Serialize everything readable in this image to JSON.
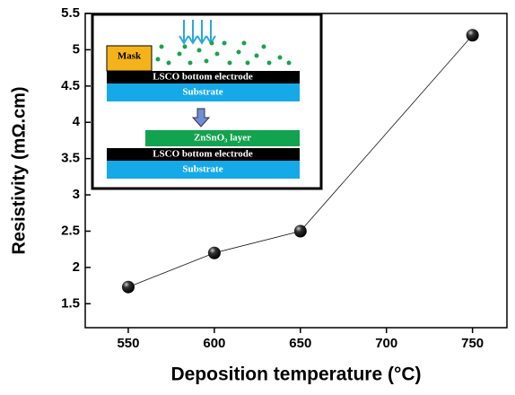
{
  "chart_data": {
    "type": "line",
    "xlabel": "Deposition temperature (°C)",
    "ylabel": "Resistivity (mΩ.cm)",
    "x": [
      550,
      600,
      650,
      750
    ],
    "series": [
      {
        "values": [
          1.73,
          2.2,
          2.5,
          5.2
        ],
        "color": "#111111"
      }
    ],
    "xlim": [
      525,
      770
    ],
    "xticks": [
      550,
      600,
      650,
      700,
      750
    ],
    "ylim": [
      1.17,
      5.5
    ],
    "yticks": [
      1.5,
      2.0,
      2.5,
      3.0,
      3.5,
      4.0,
      4.5,
      5.0,
      5.5
    ],
    "grid": false
  },
  "inset": {
    "mask": "Mask",
    "top_electrode": "LSCO bottom electrode",
    "top_substrate": "Substrate",
    "layer": "ZnSnO₃ layer",
    "bottom_electrode": "LSCO bottom electrode",
    "bottom_substrate": "Substrate"
  }
}
